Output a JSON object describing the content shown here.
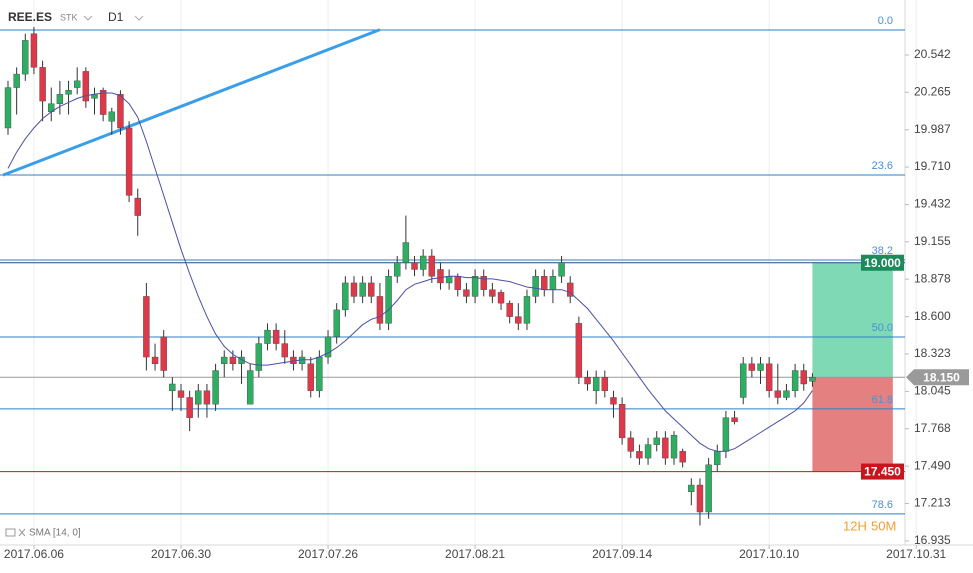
{
  "header": {
    "symbol": "REE.ES",
    "kind": "STK",
    "timeframe": "D1"
  },
  "chart_data": {
    "type": "candlestick",
    "up_color": "#2eae63",
    "down_color": "#e0384b",
    "xlim": [
      0,
      105
    ],
    "xticks": [
      {
        "value": 3,
        "label": "2017.06.06"
      },
      {
        "value": 20,
        "label": "2017.06.30"
      },
      {
        "value": 37,
        "label": "2017.07.26"
      },
      {
        "value": 54,
        "label": "2017.08.21"
      },
      {
        "value": 71,
        "label": "2017.09.14"
      },
      {
        "value": 88,
        "label": "2017.10.10"
      },
      {
        "value": 105,
        "label": "2017.10.31"
      }
    ],
    "ylim": [
      16.905,
      20.95
    ],
    "yticks": [
      20.542,
      20.265,
      19.987,
      {
        "value": 19.71,
        "label": "19.710"
      },
      19.432,
      19.155,
      18.878,
      {
        "value": 18.6,
        "label": "18.600"
      },
      18.323,
      18.045,
      17.768,
      {
        "value": 17.49,
        "label": "17.490"
      },
      17.213,
      16.935
    ],
    "grid": true,
    "open": [
      20.0,
      20.3,
      20.4,
      20.7,
      20.45,
      20.12,
      20.18,
      20.25,
      20.3,
      20.42,
      20.22,
      20.28,
      20.05,
      20.25,
      20.0,
      19.48,
      18.75,
      18.3,
      18.45,
      18.05,
      18.05,
      18.0,
      17.95,
      18.05,
      17.95,
      18.25,
      18.3,
      18.25,
      17.95,
      18.2,
      18.4,
      18.5,
      18.4,
      18.3,
      18.25,
      18.25,
      18.05,
      18.3,
      18.45,
      18.65,
      18.85,
      18.75,
      18.85,
      18.75,
      18.55,
      18.9,
      19.0,
      19.0,
      18.95,
      19.05,
      18.95,
      18.85,
      18.9,
      18.8,
      18.75,
      18.9,
      18.8,
      18.78,
      18.7,
      18.6,
      18.55,
      18.75,
      18.9,
      18.8,
      18.9,
      18.85,
      18.55,
      18.15,
      18.05,
      18.15,
      18.0,
      17.95,
      17.7,
      17.6,
      17.55,
      17.65,
      17.7,
      17.55,
      17.6,
      17.3,
      17.35,
      17.15,
      17.5,
      17.6,
      17.85,
      18.0,
      18.25,
      18.2,
      18.25,
      18.05,
      18.0,
      18.05,
      18.2,
      18.12
    ],
    "high": [
      20.35,
      20.45,
      20.7,
      20.75,
      20.5,
      20.3,
      20.35,
      20.35,
      20.45,
      20.45,
      20.3,
      20.3,
      20.15,
      20.28,
      20.05,
      19.55,
      18.85,
      18.4,
      18.5,
      18.15,
      18.1,
      18.05,
      18.1,
      18.1,
      18.25,
      18.35,
      18.35,
      18.35,
      18.25,
      18.45,
      18.55,
      18.55,
      18.5,
      18.35,
      18.35,
      18.3,
      18.35,
      18.5,
      18.7,
      18.9,
      18.9,
      18.9,
      18.9,
      18.85,
      18.95,
      19.05,
      19.35,
      19.05,
      19.1,
      19.1,
      19.0,
      18.95,
      18.92,
      18.85,
      18.95,
      18.95,
      18.85,
      18.8,
      18.72,
      18.7,
      18.8,
      18.95,
      18.95,
      18.95,
      19.05,
      18.9,
      18.6,
      18.2,
      18.2,
      18.2,
      18.05,
      18.0,
      17.75,
      17.65,
      17.7,
      17.75,
      17.75,
      17.75,
      17.62,
      17.4,
      17.4,
      17.55,
      17.65,
      17.9,
      17.9,
      18.3,
      18.3,
      18.3,
      18.3,
      18.25,
      18.1,
      18.25,
      18.25,
      18.18
    ],
    "low": [
      19.95,
      20.1,
      20.35,
      20.4,
      20.05,
      20.05,
      20.1,
      20.1,
      20.25,
      20.15,
      20.1,
      20.05,
      19.95,
      19.95,
      19.45,
      19.2,
      18.2,
      18.2,
      18.15,
      17.9,
      17.9,
      17.75,
      17.85,
      17.85,
      17.9,
      18.15,
      18.2,
      18.1,
      17.95,
      18.15,
      18.35,
      18.35,
      18.25,
      18.2,
      18.2,
      18.0,
      18.0,
      18.25,
      18.4,
      18.6,
      18.7,
      18.7,
      18.7,
      18.5,
      18.5,
      18.85,
      18.95,
      18.9,
      18.9,
      18.85,
      18.8,
      18.8,
      18.75,
      18.7,
      18.7,
      18.75,
      18.7,
      18.65,
      18.55,
      18.5,
      18.5,
      18.7,
      18.75,
      18.7,
      18.85,
      18.7,
      18.1,
      18.05,
      17.95,
      18.0,
      17.85,
      17.65,
      17.55,
      17.5,
      17.5,
      17.6,
      17.5,
      17.5,
      17.48,
      17.2,
      17.05,
      17.1,
      17.45,
      17.55,
      17.8,
      17.95,
      18.15,
      18.1,
      18.0,
      17.95,
      17.98,
      18.0,
      18.05,
      18.08
    ],
    "close": [
      20.3,
      20.4,
      20.65,
      20.45,
      20.2,
      20.18,
      20.25,
      20.28,
      20.35,
      20.2,
      20.25,
      20.1,
      20.12,
      20.0,
      19.5,
      19.35,
      18.3,
      18.25,
      18.2,
      18.1,
      18.0,
      17.85,
      18.05,
      17.95,
      18.2,
      18.3,
      18.25,
      18.3,
      18.2,
      18.4,
      18.5,
      18.4,
      18.3,
      18.25,
      18.3,
      18.05,
      18.3,
      18.45,
      18.65,
      18.85,
      18.75,
      18.85,
      18.75,
      18.55,
      18.9,
      19.0,
      19.15,
      18.95,
      19.05,
      18.9,
      18.85,
      18.9,
      18.8,
      18.75,
      18.9,
      18.8,
      18.75,
      18.7,
      18.6,
      18.55,
      18.75,
      18.9,
      18.8,
      18.9,
      19.0,
      18.75,
      18.15,
      18.1,
      18.15,
      18.05,
      17.95,
      17.7,
      17.6,
      17.55,
      17.65,
      17.7,
      17.55,
      17.72,
      17.52,
      17.35,
      17.15,
      17.5,
      17.6,
      17.85,
      17.82,
      18.25,
      18.2,
      18.25,
      18.05,
      18.0,
      18.05,
      18.2,
      18.1,
      18.15
    ],
    "sma": {
      "label": "SMA [14, 0]",
      "color": "#4b4fa6",
      "values": [
        19.7,
        19.82,
        19.92,
        20.0,
        20.07,
        20.12,
        20.16,
        20.19,
        20.22,
        20.24,
        20.25,
        20.26,
        20.26,
        20.24,
        20.18,
        20.08,
        19.9,
        19.7,
        19.5,
        19.3,
        19.1,
        18.92,
        18.75,
        18.6,
        18.47,
        18.38,
        18.32,
        18.28,
        18.25,
        18.24,
        18.24,
        18.25,
        18.26,
        18.27,
        18.28,
        18.28,
        18.3,
        18.33,
        18.37,
        18.42,
        18.48,
        18.54,
        18.58,
        18.6,
        18.65,
        18.72,
        18.8,
        18.84,
        18.86,
        18.88,
        18.89,
        18.9,
        18.9,
        18.89,
        18.89,
        18.88,
        18.88,
        18.87,
        18.86,
        18.84,
        18.82,
        18.81,
        18.8,
        18.8,
        18.8,
        18.78,
        18.72,
        18.66,
        18.58,
        18.5,
        18.42,
        18.33,
        18.24,
        18.15,
        18.06,
        17.98,
        17.9,
        17.84,
        17.78,
        17.72,
        17.66,
        17.62,
        17.6,
        17.6,
        17.62,
        17.66,
        17.7,
        17.74,
        17.78,
        17.82,
        17.86,
        17.9,
        17.96,
        18.05
      ]
    },
    "trendline": {
      "color": "#3a9ee8",
      "x": [
        -0.58,
        43.0
      ],
      "values": [
        19.65,
        20.73
      ]
    },
    "fib_color": "#2f7fc8",
    "fib_levels": [
      {
        "value": 20.727,
        "label": "0.0"
      },
      {
        "value": 19.651,
        "label": "23.6"
      },
      {
        "value": 19.02,
        "label": "38.2"
      },
      {
        "value": 18.449,
        "label": "50.0"
      },
      {
        "value": 17.915,
        "label": "61.8"
      },
      {
        "value": 17.136,
        "label": "78.6"
      }
    ],
    "position": {
      "x": [
        93,
        102.3
      ],
      "target": {
        "value": 19.0,
        "label": "19.000",
        "color": "#1d8a5a",
        "zone": "#7fd9b5"
      },
      "entry": {
        "value": 18.15,
        "label": "18.150",
        "color": "#9a9a9a"
      },
      "stop": {
        "value": 17.45,
        "label": "17.450",
        "color": "#c4161c",
        "zone": "#e58080"
      }
    },
    "countdown": {
      "hours": "12H",
      "minutes": "50M"
    }
  }
}
